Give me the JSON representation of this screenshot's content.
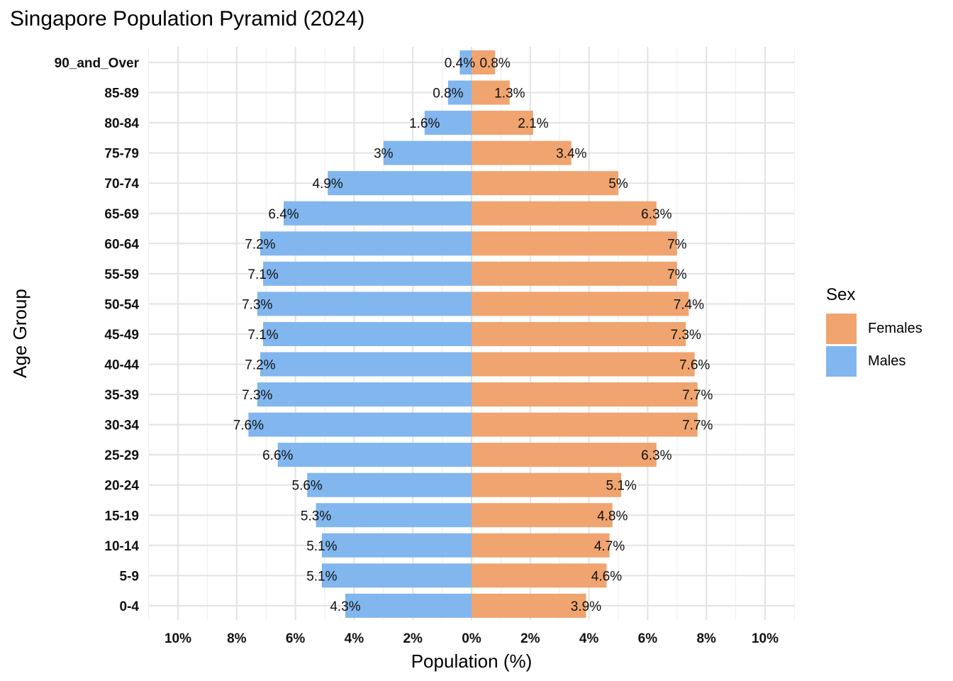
{
  "chart_data": {
    "type": "bar",
    "orientation": "horizontal-diverging",
    "title": "Singapore Population Pyramid (2024)",
    "xlabel": "Population (%)",
    "ylabel": "Age Group",
    "xlim": [
      -11,
      11
    ],
    "x_ticks": [
      -10,
      -8,
      -6,
      -4,
      -2,
      0,
      2,
      4,
      6,
      8,
      10
    ],
    "x_tick_labels": [
      "10%",
      "8%",
      "6%",
      "4%",
      "2%",
      "0%",
      "2%",
      "4%",
      "6%",
      "8%",
      "10%"
    ],
    "grid": true,
    "legend_position": "right",
    "legend_title": "Sex",
    "categories": [
      "0-4",
      "5-9",
      "10-14",
      "15-19",
      "20-24",
      "25-29",
      "30-34",
      "35-39",
      "40-44",
      "45-49",
      "50-54",
      "55-59",
      "60-64",
      "65-69",
      "70-74",
      "75-79",
      "80-84",
      "85-89",
      "90_and_Over"
    ],
    "series": [
      {
        "name": "Females",
        "color": "#F0A46F",
        "side": "right",
        "values": [
          3.9,
          4.6,
          4.7,
          4.8,
          5.1,
          6.3,
          7.7,
          7.7,
          7.6,
          7.3,
          7.4,
          7.0,
          7.0,
          6.3,
          5.0,
          3.4,
          2.1,
          1.3,
          0.8
        ],
        "labels": [
          "3.9%",
          "4.6%",
          "4.7%",
          "4.8%",
          "5.1%",
          "6.3%",
          "7.7%",
          "7.7%",
          "7.6%",
          "7.3%",
          "7.4%",
          "7%",
          "7%",
          "6.3%",
          "5%",
          "3.4%",
          "2.1%",
          "1.3%",
          "0.8%"
        ]
      },
      {
        "name": "Males",
        "color": "#82B6EE",
        "side": "left",
        "values": [
          4.3,
          5.1,
          5.1,
          5.3,
          5.6,
          6.6,
          7.6,
          7.3,
          7.2,
          7.1,
          7.3,
          7.1,
          7.2,
          6.4,
          4.9,
          3.0,
          1.6,
          0.8,
          0.4
        ],
        "labels": [
          "4.3%",
          "5.1%",
          "5.1%",
          "5.3%",
          "5.6%",
          "6.6%",
          "7.6%",
          "7.3%",
          "7.2%",
          "7.1%",
          "7.3%",
          "7.1%",
          "7.2%",
          "6.4%",
          "4.9%",
          "3%",
          "1.6%",
          "0.8%",
          "0.4%"
        ]
      }
    ]
  }
}
